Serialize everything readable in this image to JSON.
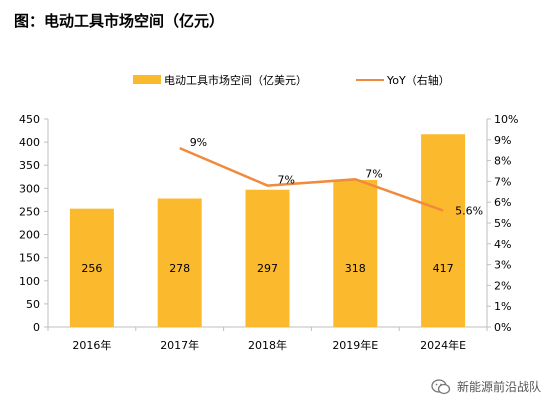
{
  "title": "图：电动工具市场空间（亿元）",
  "watermark": {
    "text": "新能源前沿战队",
    "icon": "wechat-icon"
  },
  "colors": {
    "bar": "#FBBA2E",
    "line": "#F08A3C",
    "axis": "#BFBFBF",
    "text": "#000000"
  },
  "chart_data": {
    "type": "bar",
    "categories": [
      "2016年",
      "2017年",
      "2018年",
      "2019年E",
      "2024年E"
    ],
    "series": [
      {
        "name": "电动工具市场空间（亿美元）",
        "type": "bar",
        "axis": "left",
        "values": [
          256,
          278,
          297,
          318,
          417
        ]
      },
      {
        "name": "YoY（右轴）",
        "type": "line",
        "axis": "right",
        "values": [
          null,
          8.6,
          6.8,
          7.1,
          5.6
        ],
        "labels": [
          "",
          "9%",
          "7%",
          "7%",
          "5.6%"
        ]
      }
    ],
    "y_left": {
      "min": 0,
      "max": 450,
      "ticks": [
        "0",
        "50",
        "100",
        "150",
        "200",
        "250",
        "300",
        "350",
        "400",
        "450"
      ]
    },
    "y_right": {
      "min": 0,
      "max": 10,
      "ticks": [
        "0%",
        "1%",
        "2%",
        "3%",
        "4%",
        "5%",
        "6%",
        "7%",
        "8%",
        "9%",
        "10%"
      ]
    },
    "legend": "top-center",
    "grid": false
  }
}
